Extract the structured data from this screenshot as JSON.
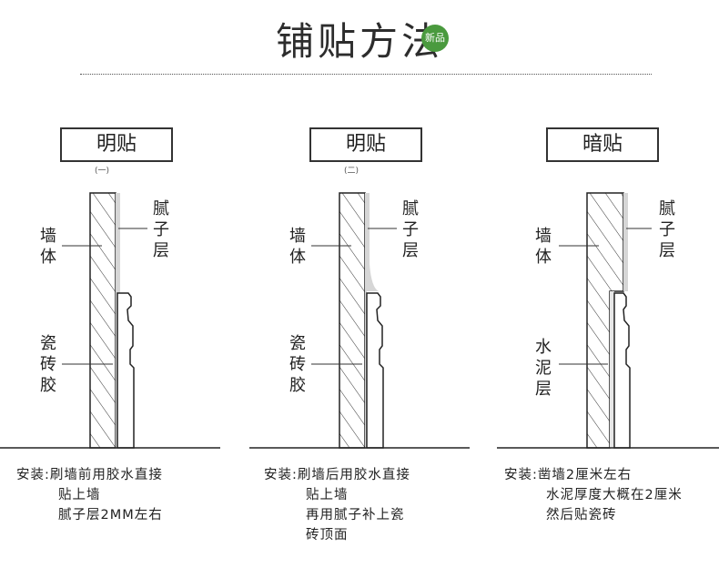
{
  "header": {
    "title": "铺贴方法",
    "badge": "新品"
  },
  "panels": [
    {
      "method": "明贴",
      "sub": "(一)",
      "labels": {
        "wall": "墙\n体",
        "putty": "腻\n子\n层",
        "glue": "瓷\n砖\n胶"
      },
      "install": {
        "prefix": "安装:",
        "lines": [
          "刷墙前用胶水直接",
          "贴上墙",
          "腻子层2MM左右"
        ]
      }
    },
    {
      "method": "明贴",
      "sub": "(二)",
      "labels": {
        "wall": "墙\n体",
        "putty": "腻\n子\n层",
        "glue": "瓷\n砖\n胶"
      },
      "install": {
        "prefix": "安装:",
        "lines": [
          "刷墙后用胶水直接",
          "贴上墙",
          "再用腻子补上瓷",
          "砖顶面"
        ]
      }
    },
    {
      "method": "暗贴",
      "sub": "",
      "labels": {
        "wall": "墙\n体",
        "putty": "腻\n子\n层",
        "glue": "水\n泥\n层"
      },
      "install": {
        "prefix": "安装:",
        "lines": [
          "凿墙2厘米左右",
          "水泥厚度大概在2厘米",
          "然后贴瓷砖"
        ]
      }
    }
  ]
}
